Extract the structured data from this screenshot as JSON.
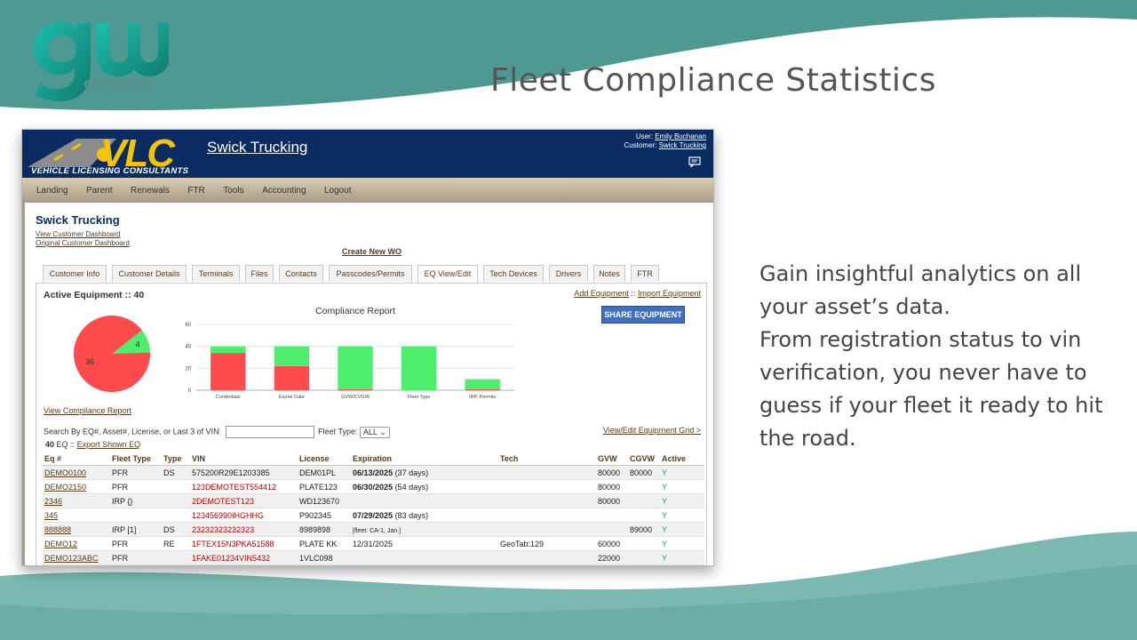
{
  "slide": {
    "title": "Fleet Compliance Statistics",
    "logo_text": "connect",
    "blurb_1": "Gain insightful analytics on all your asset’s data.",
    "blurb_2": "From registration status to vin verification, you never have to guess if your fleet it ready to hit the road.",
    "colors": {
      "teal": "#4e9a93",
      "teal_light": "#7ab8b1"
    }
  },
  "app": {
    "brand": "VLC",
    "brand_sub": "VEHICLE LICENSING CONSULTANTS",
    "company_link": "Swick Trucking",
    "user_label": "User:",
    "user_name": "Emily Buchanan",
    "customer_label": "Customer:",
    "customer_name": "Swick Trucking",
    "nav": [
      "Landing",
      "Parent",
      "Renewals",
      "FTR",
      "Tools",
      "Accounting",
      "Logout"
    ],
    "customer_title": "Swick Trucking",
    "link_view_dashboard": "View Customer Dashboard",
    "link_original_dashboard": "Original Customer Dashboard",
    "create_wo": "Create New WO",
    "tabs": [
      "Customer Info",
      "Customer Details",
      "Terminals",
      "Files",
      "Contacts",
      "Passcodes/Permits",
      "EQ View/Edit",
      "Tech Devices",
      "Drivers",
      "Notes",
      "FTR"
    ],
    "active_tab": "EQ View/Edit",
    "active_equipment": "Active Equipment :: 40",
    "add_equipment": "Add Equipment",
    "link_sep": "::",
    "import_equipment": "Import Equipment",
    "share_button": "SHARE EQUIPMENT",
    "view_compliance": "View Compliance Report",
    "search_label": "Search By EQ#, Asset#, License, or Last 3 of VIN:",
    "fleet_type_label": "Fleet Type:",
    "fleet_type_value": "ALL",
    "grid_link": "View/Edit Equipment Grid >",
    "count_bold": "40",
    "count_text": "EQ ::",
    "export_link": "Export Shown EQ"
  },
  "chart_data": [
    {
      "type": "pie",
      "values": [
        36,
        4
      ],
      "colors": [
        "#ff4b4b",
        "#4cef6c"
      ]
    },
    {
      "type": "bar",
      "title": "Compliance Report",
      "categories": [
        "Credentials",
        "Expire Date",
        "GVW/CVGW",
        "Fleet Type",
        "IRP, Permits"
      ],
      "series": [
        {
          "values": [
            34,
            22,
            1,
            0,
            1
          ],
          "color": "#ff4b4b"
        },
        {
          "values": [
            6,
            18,
            39,
            40,
            9
          ],
          "color": "#4cef6c"
        }
      ],
      "ylim": [
        0,
        60
      ],
      "yticks": [
        0,
        20,
        40,
        60
      ],
      "grid": true
    }
  ],
  "table": {
    "headers": [
      "Eq #",
      "Fleet Type",
      "Type",
      "VIN",
      "License",
      "Expiration",
      "Tech",
      "GVW",
      "CGVW",
      "Active"
    ],
    "rows": [
      {
        "eq": "DEMO0100",
        "fleet": "PFR",
        "type": "DS",
        "vin": "575200R29E1203385",
        "vin_red": false,
        "license": "DEM01PL",
        "exp_date": "06/13/2025",
        "exp_days": "(37 days)",
        "tech": "",
        "gvw": "80000",
        "cgvw": "80000",
        "active": "Y"
      },
      {
        "eq": "DEMO2150",
        "fleet": "PFR",
        "type": "",
        "vin": "123DEMOTEST554412",
        "vin_red": true,
        "license": "PLATE123",
        "exp_date": "06/30/2025",
        "exp_days": "(54 days)",
        "tech": "",
        "gvw": "80000",
        "cgvw": "",
        "active": "Y"
      },
      {
        "eq": "2346",
        "fleet": "IRP {}",
        "type": "",
        "vin": "2DEMOTEST123",
        "vin_red": true,
        "license": "WD123670",
        "exp_date": "",
        "exp_days": "",
        "tech": "",
        "gvw": "80000",
        "cgvw": "",
        "active": "Y"
      },
      {
        "eq": "345",
        "fleet": "",
        "type": "",
        "vin": "123456990IHGHHG",
        "vin_red": true,
        "license": "P902345",
        "exp_date": "07/29/2025",
        "exp_days": "(83 days)",
        "tech": "",
        "gvw": "",
        "cgvw": "",
        "active": "Y"
      },
      {
        "eq": "888888",
        "fleet": "IRP [1]",
        "type": "DS",
        "vin": "23232323232323",
        "vin_red": true,
        "license": "8989898",
        "exp_date": "",
        "exp_days": "[fleet: CA-1, Jan.]",
        "tech": "",
        "gvw": "",
        "cgvw": "89000",
        "active": "Y"
      },
      {
        "eq": "DEMO12",
        "fleet": "PFR",
        "type": "RE",
        "vin": "1FTEX15N3PKA51588",
        "vin_red": true,
        "license": "PLATE KK",
        "exp_date": "",
        "exp_days": "12/31/2025",
        "tech": "GeoTab:129",
        "gvw": "60000",
        "cgvw": "",
        "active": "Y"
      },
      {
        "eq": "DEMO123ABC",
        "fleet": "PFR",
        "type": "",
        "vin": "1FAKE01234VIN5432",
        "vin_red": true,
        "license": "1VLC098",
        "exp_date": "",
        "exp_days": "",
        "tech": "",
        "gvw": "22000",
        "cgvw": "",
        "active": "Y"
      }
    ]
  }
}
